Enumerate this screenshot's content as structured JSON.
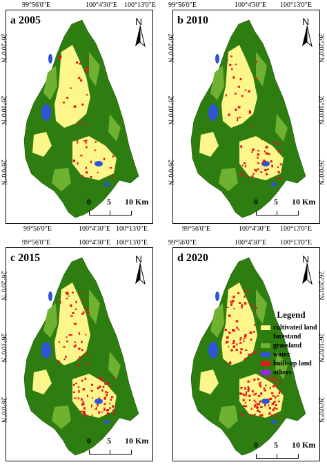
{
  "panels": [
    {
      "label": "a 2005"
    },
    {
      "label": "b 2010"
    },
    {
      "label": "c 2015"
    },
    {
      "label": "d 2020"
    }
  ],
  "ticks": {
    "lon": [
      "99°56'0\"E",
      "100°4'30\"E",
      "100°13'0\"E"
    ],
    "lat": [
      "26°20'0\"N",
      "26°10'0\"N",
      "26°0'0\"N"
    ]
  },
  "north_label": "N",
  "scale": {
    "zero": "0",
    "five": "5",
    "ten": "10 Km"
  },
  "legend": {
    "title": "Legend",
    "items": [
      {
        "label": "cultivated land",
        "color": "#fdf68a"
      },
      {
        "label": "forestand",
        "color": "#2e7d10"
      },
      {
        "label": "grassland",
        "color": "#6fb130"
      },
      {
        "label": "water",
        "color": "#2f54d8"
      },
      {
        "label": "built-up land",
        "color": "#e3161b"
      },
      {
        "label": "others",
        "color": "#a020f0"
      }
    ]
  }
}
